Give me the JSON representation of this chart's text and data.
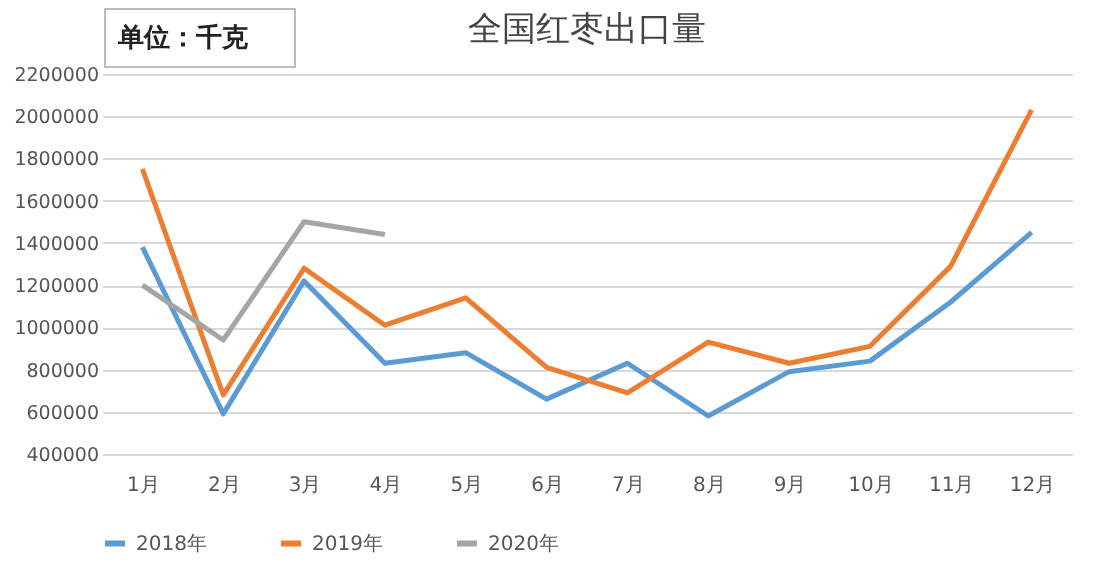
{
  "chart_data": {
    "type": "line",
    "title": "全国红枣出口量",
    "annotations": [
      "单位：千克"
    ],
    "categories": [
      "1月",
      "2月",
      "3月",
      "4月",
      "5月",
      "6月",
      "7月",
      "8月",
      "9月",
      "10月",
      "11月",
      "12月"
    ],
    "series": [
      {
        "name": "2018年",
        "color": "#5b9bd5",
        "values": [
          1380000,
          590000,
          1220000,
          830000,
          880000,
          660000,
          830000,
          580000,
          790000,
          840000,
          1120000,
          1450000
        ]
      },
      {
        "name": "2019年",
        "color": "#ed7d31",
        "values": [
          1750000,
          680000,
          1280000,
          1010000,
          1140000,
          810000,
          690000,
          930000,
          830000,
          910000,
          1290000,
          2030000
        ]
      },
      {
        "name": "2020年",
        "color": "#a5a5a5",
        "values": [
          1200000,
          940000,
          1500000,
          1440000,
          null,
          null,
          null,
          null,
          null,
          null,
          null,
          null
        ]
      }
    ],
    "ylim": [
      400000,
      2200000
    ],
    "yticks": [
      400000,
      600000,
      800000,
      1000000,
      1200000,
      1400000,
      1600000,
      1800000,
      2000000,
      2200000
    ],
    "grid": "y",
    "legend": "bottom",
    "marker": "none",
    "line_style": "solid"
  }
}
